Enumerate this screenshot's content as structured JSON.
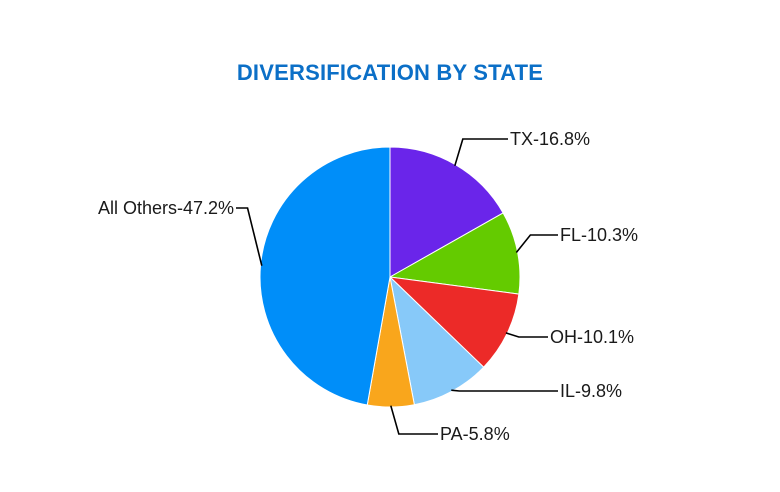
{
  "chart_data": {
    "type": "pie",
    "title": "DIVERSIFICATION BY STATE",
    "title_color": "#0b6fc7",
    "start_angle_deg": 0,
    "direction": "clockwise",
    "slices": [
      {
        "category": "TX",
        "value": 16.8,
        "label": "TX-16.8%",
        "color": "#6a25ea"
      },
      {
        "category": "FL",
        "value": 10.3,
        "label": "FL-10.3%",
        "color": "#64cb00"
      },
      {
        "category": "OH",
        "value": 10.1,
        "label": "OH-10.1%",
        "color": "#ec2a28"
      },
      {
        "category": "IL",
        "value": 9.8,
        "label": "IL-9.8%",
        "color": "#87c9f9"
      },
      {
        "category": "PA",
        "value": 5.8,
        "label": "PA-5.8%",
        "color": "#f9a61c"
      },
      {
        "category": "All Others",
        "value": 47.2,
        "label": "All Others-47.2%",
        "color": "#008ef9"
      }
    ]
  }
}
